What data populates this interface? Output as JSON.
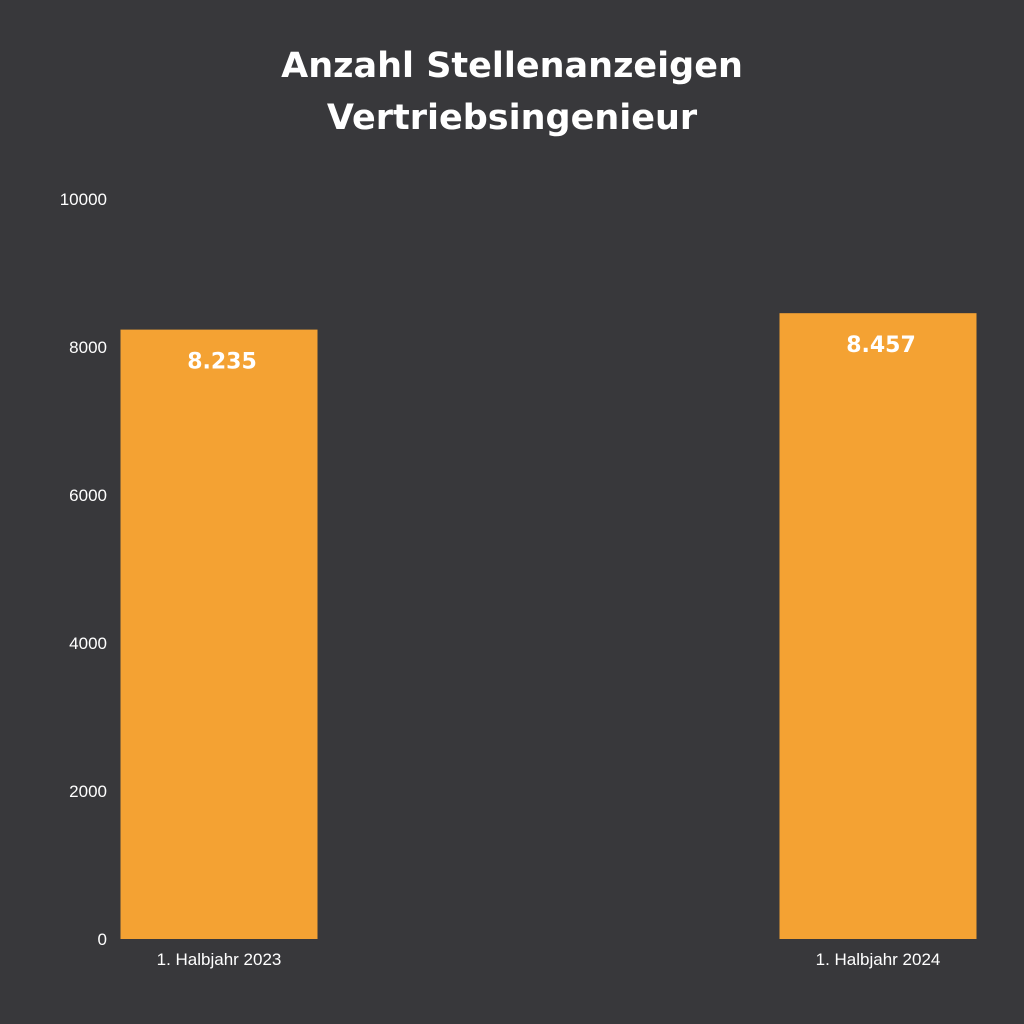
{
  "header": {
    "title_line1": "Anzahl Stellenanzeigen",
    "title_line2": "Vertriebsingenieur"
  },
  "chart_data": {
    "type": "bar",
    "title": "Anzahl Stellenanzeigen Vertriebsingenieur",
    "categories": [
      "1. Halbjahr 2023",
      "1. Halbjahr 2024"
    ],
    "values": [
      8235,
      8457
    ],
    "value_labels": [
      "8.235",
      "8.457"
    ],
    "yticks": [
      "0",
      "2000",
      "4000",
      "6000",
      "8000",
      "10000"
    ],
    "ylim": [
      0,
      10000
    ],
    "xlabel": "",
    "ylabel": "",
    "grid": false,
    "bar_color": "#f4a233"
  }
}
